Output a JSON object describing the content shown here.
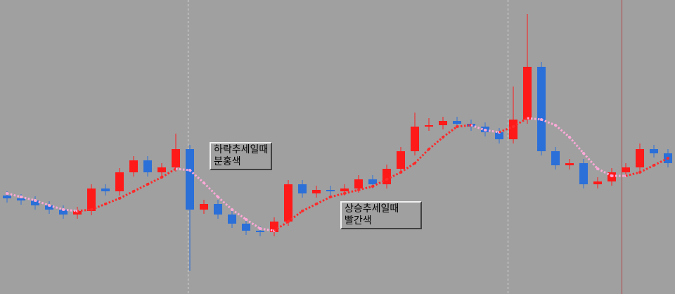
{
  "chart_data": {
    "type": "candlestick",
    "ylim": [
      0,
      418
    ],
    "up_color": "#ff1a1a",
    "down_color": "#2b6fd8",
    "open": [
      140,
      136,
      133,
      126,
      120,
      113,
      118,
      150,
      146,
      173,
      190,
      173,
      180,
      206,
      120,
      128,
      113,
      100,
      90,
      88,
      103,
      156,
      143,
      148,
      146,
      150,
      163,
      156,
      178,
      203,
      238,
      240,
      246,
      242,
      238,
      230,
      220,
      248,
      323,
      203,
      183,
      186,
      156,
      160,
      173,
      180,
      206,
      200
    ],
    "high": [
      146,
      142,
      139,
      132,
      126,
      124,
      156,
      156,
      179,
      196,
      196,
      186,
      228,
      212,
      134,
      134,
      119,
      106,
      96,
      109,
      162,
      162,
      154,
      154,
      156,
      169,
      169,
      184,
      209,
      258,
      250,
      252,
      252,
      248,
      244,
      236,
      295,
      398,
      330,
      209,
      192,
      192,
      166,
      179,
      186,
      214,
      212,
      206
    ],
    "low": [
      130,
      127,
      120,
      114,
      107,
      107,
      112,
      140,
      140,
      167,
      167,
      167,
      174,
      33,
      114,
      107,
      94,
      84,
      82,
      82,
      97,
      137,
      137,
      140,
      140,
      144,
      150,
      150,
      172,
      197,
      232,
      234,
      236,
      232,
      224,
      214,
      214,
      242,
      197,
      177,
      177,
      150,
      150,
      154,
      167,
      174,
      194,
      180
    ],
    "close": [
      136,
      133,
      126,
      120,
      113,
      118,
      150,
      146,
      173,
      190,
      173,
      180,
      206,
      120,
      128,
      113,
      100,
      90,
      88,
      103,
      156,
      143,
      148,
      146,
      150,
      163,
      156,
      178,
      203,
      238,
      240,
      246,
      242,
      238,
      230,
      220,
      248,
      323,
      203,
      183,
      186,
      156,
      160,
      173,
      180,
      206,
      200,
      186
    ],
    "ma": {
      "up_color": "#ff2a2a",
      "down_color": "#ffa8d8",
      "values": [
        143,
        138,
        133,
        126,
        120,
        118,
        120,
        128,
        136,
        146,
        156,
        166,
        178,
        176,
        158,
        138,
        120,
        106,
        93,
        90,
        103,
        118,
        128,
        138,
        143,
        148,
        153,
        163,
        173,
        186,
        206,
        223,
        238,
        240,
        233,
        230,
        238,
        250,
        248,
        240,
        223,
        200,
        178,
        168,
        168,
        173,
        183,
        193
      ]
    },
    "annotations": [
      {
        "lines": [
          "하락추세일때",
          "분홍색"
        ]
      },
      {
        "lines": [
          "상승추세일때",
          "빨간색"
        ]
      }
    ]
  }
}
